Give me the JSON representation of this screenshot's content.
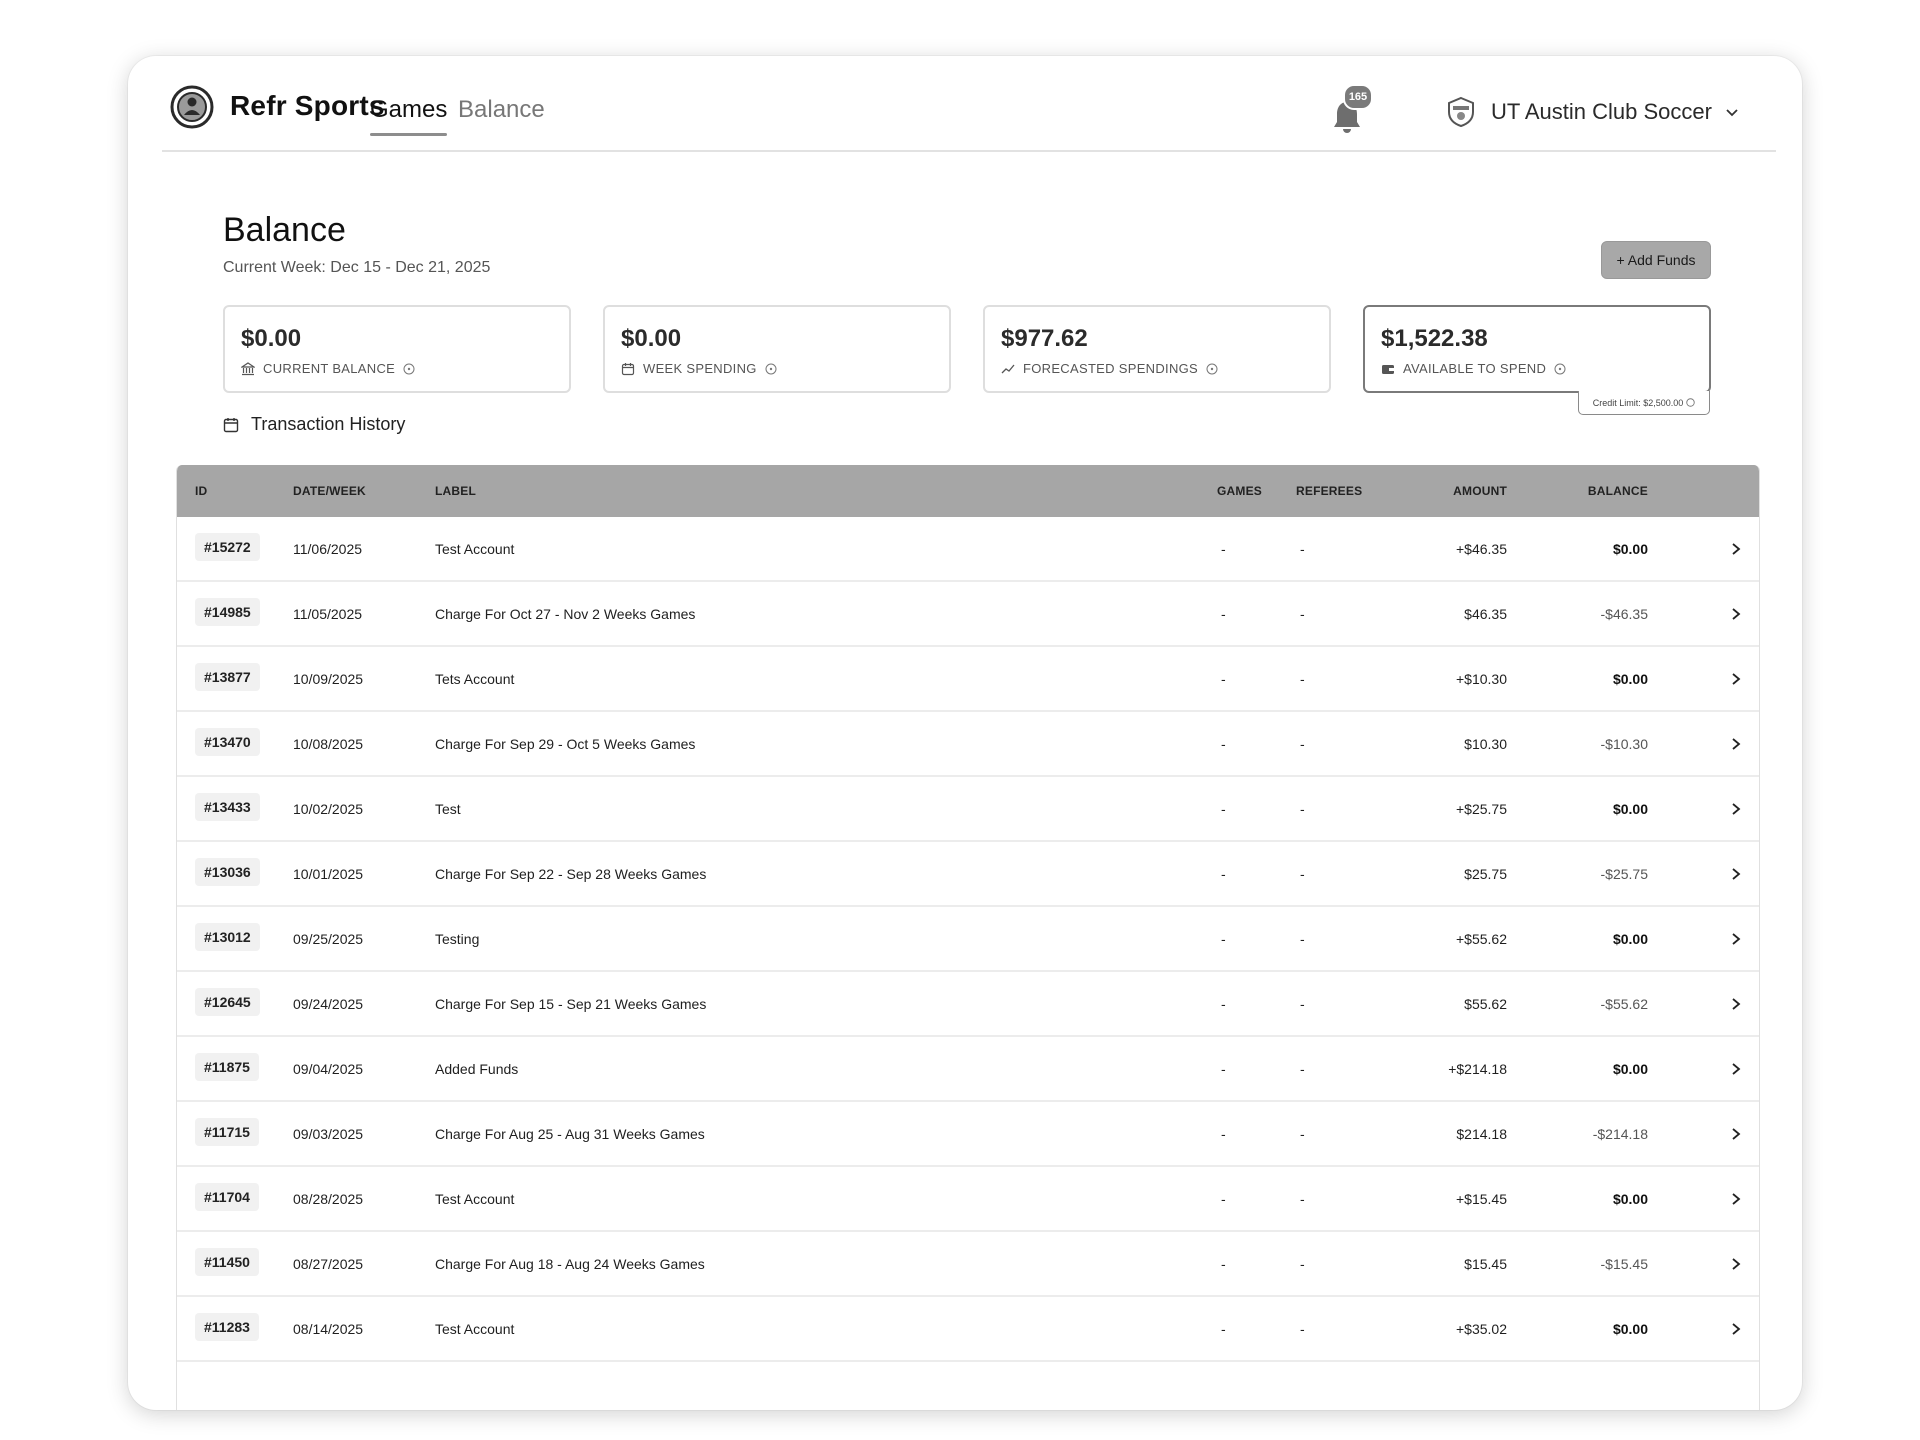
{
  "app": {
    "brand": "Refr Sports",
    "nav": [
      {
        "label": "Games",
        "active": true
      },
      {
        "label": "Balance",
        "active": false
      }
    ],
    "notifications_count": "165",
    "club_name": "UT Austin Club Soccer"
  },
  "balance": {
    "title": "Balance",
    "current_week": "Current Week: Dec 15 - Dec 21, 2025",
    "add_funds_label": "+ Add Funds",
    "cards": [
      {
        "value": "$0.00",
        "label": "CURRENT BALANCE",
        "icon": "bank-icon"
      },
      {
        "value": "$0.00",
        "label": "WEEK SPENDING",
        "icon": "calendar-icon"
      },
      {
        "value": "$977.62",
        "label": "FORECASTED SPENDINGS",
        "icon": "trend-up-icon"
      },
      {
        "value": "$1,522.38",
        "label": "AVAILABLE TO SPEND",
        "icon": "wallet-icon"
      }
    ],
    "credit_limit": "Credit Limit: $2,500.00",
    "history_title": "Transaction History"
  },
  "table": {
    "headers": {
      "id": "ID",
      "date": "DATE/WEEK",
      "label": "LABEL",
      "games": "GAMES",
      "referees": "REFEREES",
      "amount": "AMOUNT",
      "balance": "BALANCE"
    },
    "rows": [
      {
        "id": "#15272",
        "date": "11/06/2025",
        "label": "Test Account",
        "games": "-",
        "referees": "-",
        "amount": "+$46.35",
        "balance": "$0.00"
      },
      {
        "id": "#14985",
        "date": "11/05/2025",
        "label": "Charge For Oct 27 - Nov 2 Weeks Games",
        "games": "-",
        "referees": "-",
        "amount": "$46.35",
        "balance": "-$46.35"
      },
      {
        "id": "#13877",
        "date": "10/09/2025",
        "label": "Tets Account",
        "games": "-",
        "referees": "-",
        "amount": "+$10.30",
        "balance": "$0.00"
      },
      {
        "id": "#13470",
        "date": "10/08/2025",
        "label": "Charge For Sep 29 - Oct 5 Weeks Games",
        "games": "-",
        "referees": "-",
        "amount": "$10.30",
        "balance": "-$10.30"
      },
      {
        "id": "#13433",
        "date": "10/02/2025",
        "label": "Test",
        "games": "-",
        "referees": "-",
        "amount": "+$25.75",
        "balance": "$0.00"
      },
      {
        "id": "#13036",
        "date": "10/01/2025",
        "label": "Charge For Sep 22 - Sep 28 Weeks Games",
        "games": "-",
        "referees": "-",
        "amount": "$25.75",
        "balance": "-$25.75"
      },
      {
        "id": "#13012",
        "date": "09/25/2025",
        "label": "Testing",
        "games": "-",
        "referees": "-",
        "amount": "+$55.62",
        "balance": "$0.00"
      },
      {
        "id": "#12645",
        "date": "09/24/2025",
        "label": "Charge For Sep 15 - Sep 21 Weeks Games",
        "games": "-",
        "referees": "-",
        "amount": "$55.62",
        "balance": "-$55.62"
      },
      {
        "id": "#11875",
        "date": "09/04/2025",
        "label": "Added Funds",
        "games": "-",
        "referees": "-",
        "amount": "+$214.18",
        "balance": "$0.00"
      },
      {
        "id": "#11715",
        "date": "09/03/2025",
        "label": "Charge For Aug 25 - Aug 31 Weeks Games",
        "games": "-",
        "referees": "-",
        "amount": "$214.18",
        "balance": "-$214.18"
      },
      {
        "id": "#11704",
        "date": "08/28/2025",
        "label": "Test Account",
        "games": "-",
        "referees": "-",
        "amount": "+$15.45",
        "balance": "$0.00"
      },
      {
        "id": "#11450",
        "date": "08/27/2025",
        "label": "Charge For Aug 18 - Aug 24 Weeks Games",
        "games": "-",
        "referees": "-",
        "amount": "$15.45",
        "balance": "-$15.45"
      },
      {
        "id": "#11283",
        "date": "08/14/2025",
        "label": "Test Account",
        "games": "-",
        "referees": "-",
        "amount": "+$35.02",
        "balance": "$0.00"
      }
    ]
  }
}
